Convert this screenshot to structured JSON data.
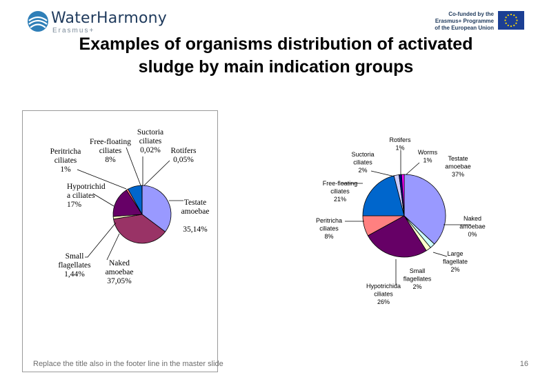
{
  "header": {
    "logo_text": "WaterHarmony",
    "logo_sub": "Erasmus+",
    "eu_text_lines": [
      "Co-funded by the",
      "Erasmus+ Programme",
      "of the European Union"
    ]
  },
  "title_lines": [
    "Examples of organisms distribution of activated",
    "sludge by main indication groups"
  ],
  "footer": {
    "text": "Replace the title also in the footer line in the master slide",
    "page_number": "16"
  },
  "colors": {
    "testate": "#9999ff",
    "naked": "#993366",
    "small": "#ffffcc",
    "hypotrichid": "#660066",
    "peritricha": "#ff8080",
    "free": "#0066cc",
    "suctoria": "#ccccff",
    "rotifers": "#000080",
    "worms": "#ff00ff",
    "large": "#ccffff"
  },
  "chart_data": [
    {
      "type": "pie",
      "slices": [
        {
          "key": "testate",
          "value": 35.14,
          "label_lines": [
            "Testate",
            "amoebae",
            "",
            "35,14%"
          ]
        },
        {
          "key": "naked",
          "value": 37.05,
          "label_lines": [
            "Naked",
            "amoebae",
            "37,05%"
          ]
        },
        {
          "key": "small",
          "value": 1.44,
          "label_lines": [
            "Small",
            "flagellates",
            "1,44%"
          ]
        },
        {
          "key": "hypotrichid",
          "value": 17,
          "label_lines": [
            "Hypotrichid",
            "a ciliates",
            "17%"
          ]
        },
        {
          "key": "peritricha",
          "value": 1,
          "label_lines": [
            "Peritricha",
            "ciliates",
            "1%"
          ]
        },
        {
          "key": "free",
          "value": 8,
          "label_lines": [
            "Free-floating",
            "ciliates",
            "8%"
          ]
        },
        {
          "key": "suctoria",
          "value": 0.02,
          "label_lines": [
            "Suctoria",
            "ciliates",
            "0,02%"
          ]
        },
        {
          "key": "rotifers",
          "value": 0.05,
          "label_lines": [
            "Rotifers",
            "0,05%"
          ]
        }
      ]
    },
    {
      "type": "pie",
      "slices": [
        {
          "key": "testate",
          "value": 37,
          "label_lines": [
            "Testate",
            "amoebae",
            "37%"
          ]
        },
        {
          "key": "naked",
          "value": 0,
          "label_lines": [
            "Naked",
            "amoebae",
            "0%"
          ]
        },
        {
          "key": "large",
          "value": 2,
          "label_lines": [
            "Large",
            "flagellate",
            "2%"
          ]
        },
        {
          "key": "small",
          "value": 2,
          "label_lines": [
            "Small",
            "flagellates",
            "2%"
          ]
        },
        {
          "key": "hypotrichid",
          "value": 26,
          "label_lines": [
            "Hypotrichida",
            "ciliates",
            "26%"
          ]
        },
        {
          "key": "peritricha",
          "value": 8,
          "label_lines": [
            "Peritricha",
            "ciliates",
            "8%"
          ]
        },
        {
          "key": "free",
          "value": 21,
          "label_lines": [
            "Free-floating",
            "ciliates",
            "21%"
          ]
        },
        {
          "key": "suctoria",
          "value": 2,
          "label_lines": [
            "Suctoria",
            "ciliates",
            "2%"
          ]
        },
        {
          "key": "rotifers",
          "value": 1,
          "label_lines": [
            "Rotifers",
            "1%"
          ]
        },
        {
          "key": "worms",
          "value": 1,
          "label_lines": [
            "Worms",
            "1%"
          ]
        }
      ]
    }
  ]
}
